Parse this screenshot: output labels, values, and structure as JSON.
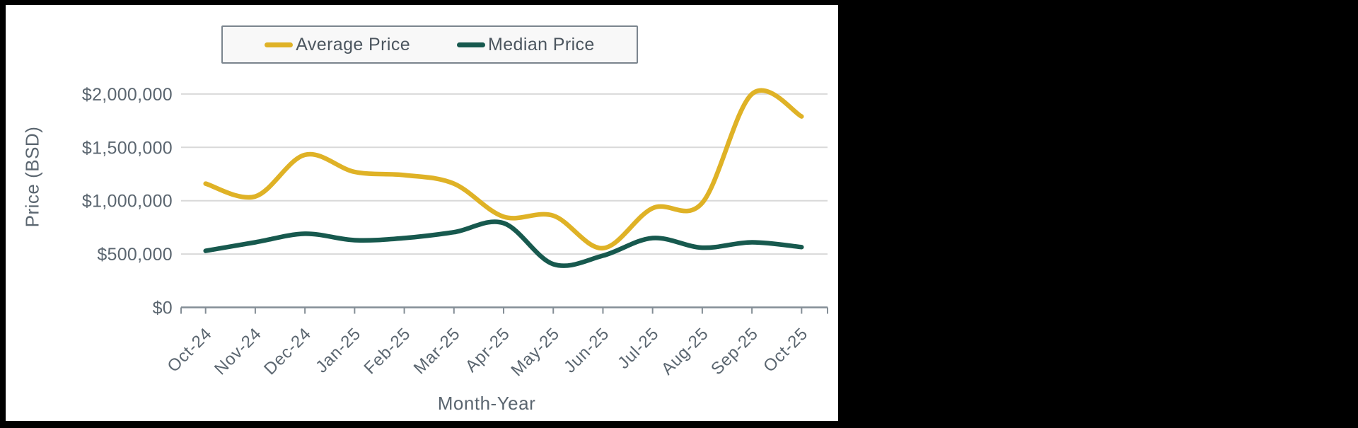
{
  "legend": {
    "items": [
      {
        "label": "Average Price",
        "color": "#dfb226"
      },
      {
        "label": "Median Price",
        "color": "#17594e"
      }
    ]
  },
  "chart_data": {
    "type": "line",
    "title": "",
    "xlabel": "Month-Year",
    "ylabel": "Price (BSD)",
    "categories": [
      "Oct-24",
      "Nov-24",
      "Dec-24",
      "Jan-25",
      "Feb-25",
      "Mar-25",
      "Apr-25",
      "May-25",
      "Jun-25",
      "Jul-25",
      "Aug-25",
      "Sep-25",
      "Oct-25"
    ],
    "series": [
      {
        "name": "Average Price",
        "color": "#dfb226",
        "values": [
          1160000,
          1040000,
          1430000,
          1270000,
          1240000,
          1160000,
          850000,
          860000,
          555000,
          930000,
          980000,
          2000000,
          1790000
        ]
      },
      {
        "name": "Median Price",
        "color": "#17594e",
        "values": [
          530000,
          610000,
          690000,
          630000,
          650000,
          705000,
          790000,
          405000,
          485000,
          650000,
          560000,
          610000,
          565000
        ]
      }
    ],
    "ylim": [
      0,
      2150000
    ],
    "y_tick_values": [
      0,
      500000,
      1000000,
      1500000,
      2000000
    ],
    "y_tick_labels": [
      "$0",
      "$500,000",
      "$1,000,000",
      "$1,500,000",
      "$2,000,000"
    ],
    "grid": true,
    "legend_position": "top",
    "smoothing": true
  },
  "colors": {
    "page_background": "#000000",
    "panel_background": "#ffffff",
    "gridline": "#d9d9d9",
    "axis_line": "#848e96",
    "tick_text": "#5b6670",
    "legend_text": "#4c565f",
    "legend_border": "#7b858e",
    "legend_background": "#f8f8f8"
  }
}
